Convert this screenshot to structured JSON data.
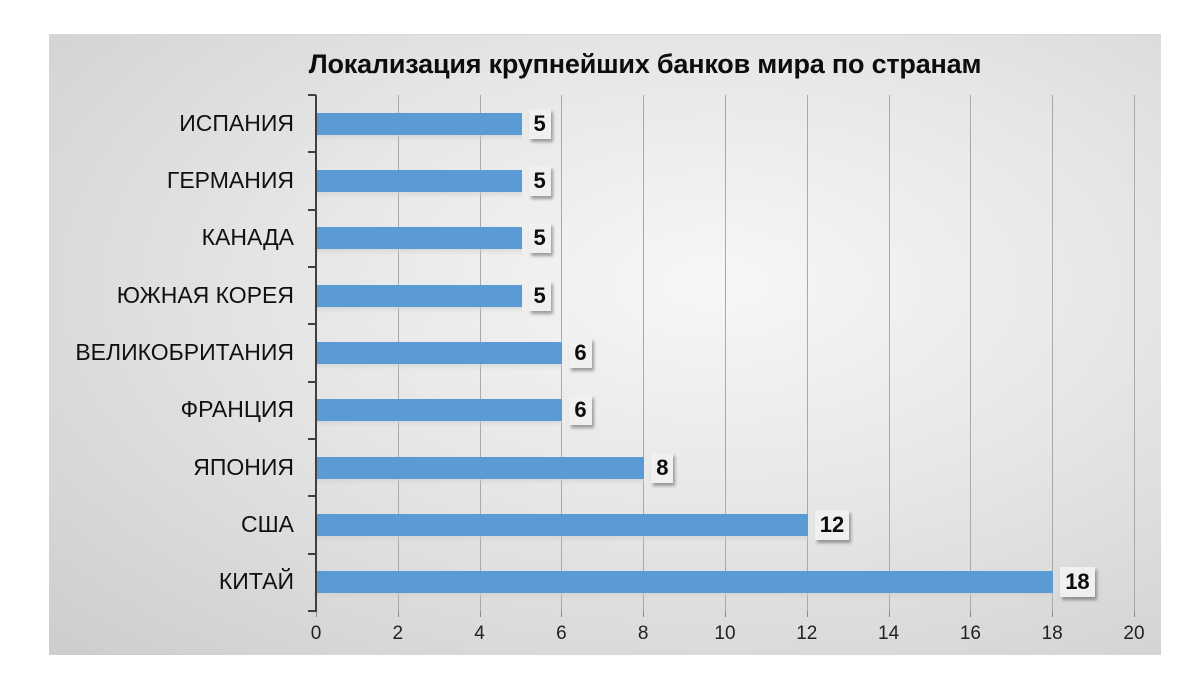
{
  "chart_data": {
    "type": "bar",
    "orientation": "horizontal",
    "title": "Локализация крупнейших банков мира по странам",
    "categories": [
      "ИСПАНИЯ",
      "ГЕРМАНИЯ",
      "КАНАДА",
      "ЮЖНАЯ КОРЕЯ",
      "ВЕЛИКОБРИТАНИЯ",
      "ФРАНЦИЯ",
      "ЯПОНИЯ",
      "США",
      "КИТАЙ"
    ],
    "values": [
      5,
      5,
      5,
      5,
      6,
      6,
      8,
      12,
      18
    ],
    "value_labels": [
      "5",
      "5",
      "5",
      "5",
      "6",
      "6",
      "8",
      "12",
      "18"
    ],
    "xlabel": "",
    "ylabel": "",
    "xlim": [
      0,
      20
    ],
    "x_ticks": [
      "0",
      "2",
      "4",
      "6",
      "8",
      "10",
      "12",
      "14",
      "16",
      "18",
      "20"
    ],
    "grid": true,
    "legend": "none",
    "bar_color": "#5b9bd5"
  }
}
